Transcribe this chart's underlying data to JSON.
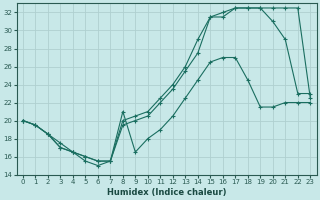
{
  "xlabel": "Humidex (Indice chaleur)",
  "bg_color": "#c8e8e8",
  "grid_color": "#afd0d0",
  "line_color": "#1a6e60",
  "xlim": [
    -0.5,
    23.5
  ],
  "ylim": [
    14,
    33
  ],
  "xticks": [
    0,
    1,
    2,
    3,
    4,
    5,
    6,
    7,
    8,
    9,
    10,
    11,
    12,
    13,
    14,
    15,
    16,
    17,
    18,
    19,
    20,
    21,
    22,
    23
  ],
  "yticks": [
    14,
    16,
    18,
    20,
    22,
    24,
    26,
    28,
    30,
    32
  ],
  "curve1_x": [
    0,
    1,
    2,
    3,
    4,
    5,
    6,
    7,
    8,
    9,
    10,
    11,
    12,
    13,
    14,
    15,
    16,
    17,
    18,
    19,
    20,
    21,
    22,
    23
  ],
  "curve1_y": [
    20.0,
    19.5,
    18.5,
    17.5,
    16.5,
    15.5,
    15.0,
    15.5,
    21.0,
    16.5,
    18.0,
    19.0,
    20.5,
    22.5,
    24.5,
    26.5,
    27.0,
    27.0,
    24.5,
    21.5,
    21.5,
    22.0,
    22.0,
    22.0
  ],
  "curve2_x": [
    0,
    1,
    2,
    3,
    4,
    5,
    6,
    7,
    8,
    9,
    10,
    11,
    12,
    13,
    14,
    15,
    16,
    17,
    18,
    19,
    20,
    21,
    22,
    23
  ],
  "curve2_y": [
    20.0,
    19.5,
    18.5,
    17.0,
    16.5,
    16.0,
    15.5,
    15.5,
    19.5,
    20.0,
    20.5,
    22.0,
    23.5,
    25.5,
    27.5,
    31.5,
    31.5,
    32.5,
    32.5,
    32.5,
    31.0,
    29.0,
    23.0,
    23.0
  ],
  "curve3_x": [
    0,
    1,
    2,
    3,
    4,
    5,
    6,
    7,
    8,
    9,
    10,
    11,
    12,
    13,
    14,
    15,
    16,
    17,
    18,
    19,
    20,
    21,
    22,
    23
  ],
  "curve3_y": [
    20.0,
    19.5,
    18.5,
    17.0,
    16.5,
    16.0,
    15.5,
    15.5,
    20.0,
    20.5,
    21.0,
    22.5,
    24.0,
    26.0,
    29.0,
    31.5,
    32.0,
    32.5,
    32.5,
    32.5,
    32.5,
    32.5,
    32.5,
    22.5
  ]
}
